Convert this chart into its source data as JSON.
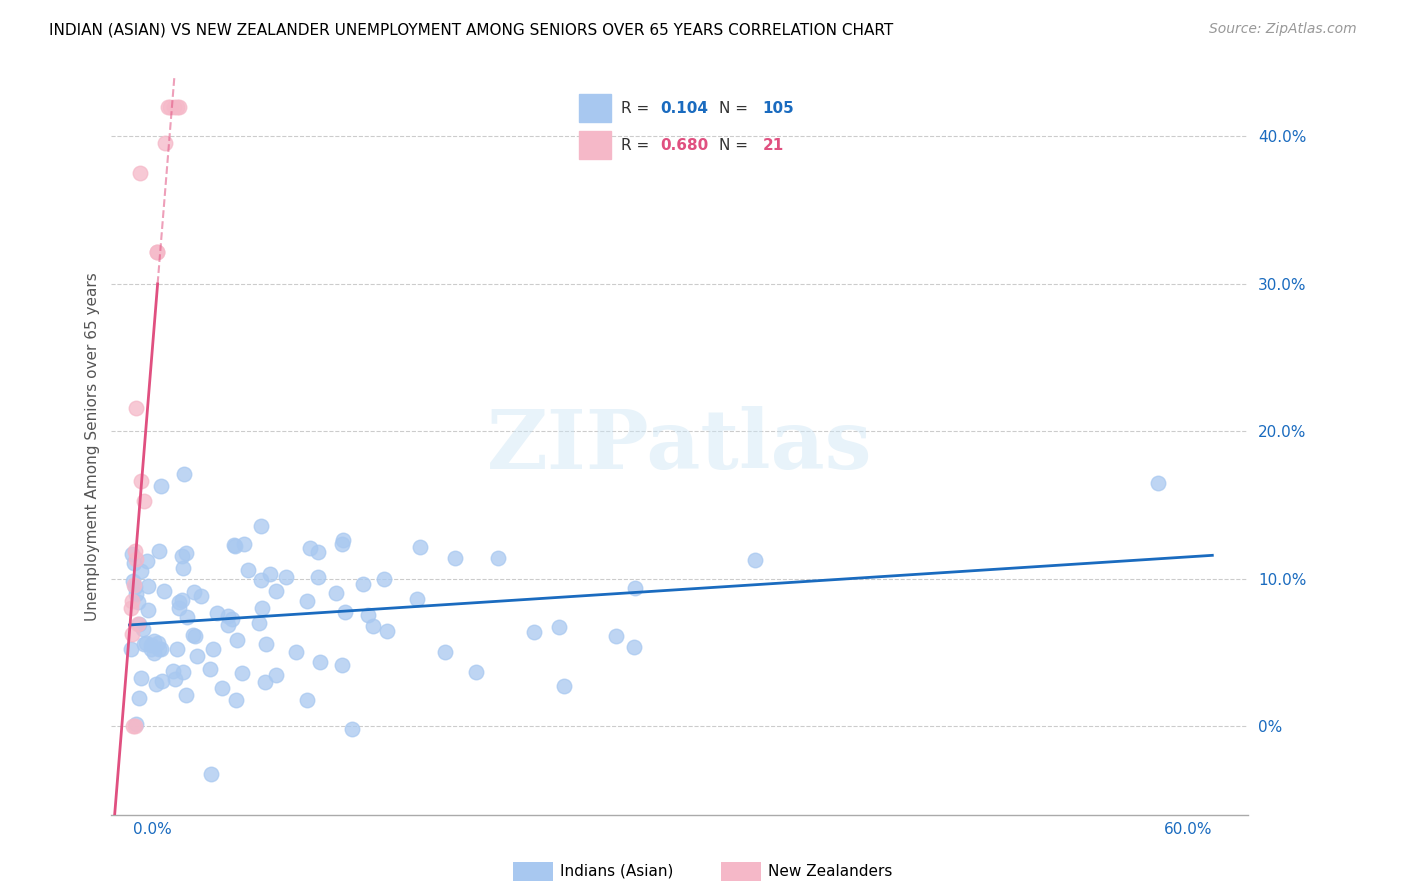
{
  "title": "INDIAN (ASIAN) VS NEW ZEALANDER UNEMPLOYMENT AMONG SENIORS OVER 65 YEARS CORRELATION CHART",
  "source": "Source: ZipAtlas.com",
  "ylabel": "Unemployment Among Seniors over 65 years",
  "right_ytick_labels": [
    "0%",
    "10.0%",
    "20.0%",
    "30.0%",
    "40.0%"
  ],
  "right_ytick_values": [
    0.0,
    0.1,
    0.2,
    0.3,
    0.4
  ],
  "legend_indian_R": "0.104",
  "legend_indian_N": "105",
  "legend_nz_R": "0.680",
  "legend_nz_N": "21",
  "indian_color": "#a8c8f0",
  "indian_line_color": "#1a6bbf",
  "nz_color": "#f5b8c8",
  "nz_line_color": "#e05080",
  "xlim": [
    -0.01,
    0.62
  ],
  "ylim": [
    -0.06,
    0.44
  ],
  "title_fontsize": 11,
  "source_fontsize": 10,
  "tick_fontsize": 11
}
